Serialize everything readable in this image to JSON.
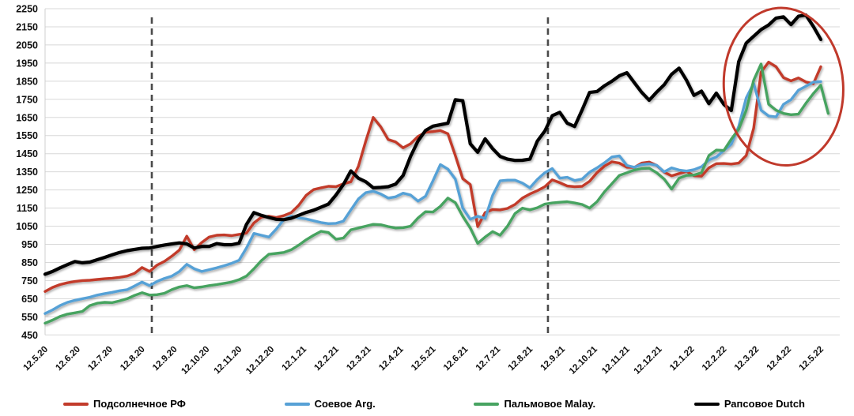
{
  "chart_data": {
    "type": "line",
    "title": "",
    "xlabel": "",
    "ylabel": "",
    "grid": "horizontal",
    "legend_position": "bottom",
    "y_axis": {
      "min": 450,
      "max": 2250,
      "step": 100
    },
    "y_tick_labels": [
      "2250",
      "2150",
      "2050",
      "1950",
      "1850",
      "1750",
      "1650",
      "1550",
      "1450",
      "1350",
      "1250",
      "1150",
      "1050",
      "950",
      "850",
      "750",
      "650",
      "550",
      "450"
    ],
    "x_tick_labels": [
      "12.5.20",
      "12.6.20",
      "12.7.20",
      "12.8.20",
      "12.9.20",
      "12.10.20",
      "12.11.20",
      "12.12.20",
      "12.1.21",
      "12.2.21",
      "12.3.21",
      "12.4.21",
      "12.5.21",
      "12.6.21",
      "12.7.21",
      "12.8.21",
      "12.9.21",
      "12.10.21",
      "12.11.21",
      "12.12.21",
      "12.1.22",
      "12.2.22",
      "12.3.22",
      "12.4.22",
      "12.5.22"
    ],
    "x_unit": "weekly prices, 12.5.2020 - 12.5.2022",
    "points_per_series": 105,
    "series": [
      {
        "key": "sunflower-rf",
        "name": "Подсолнечное РФ",
        "color": "#C23B2B",
        "values": [
          690,
          712,
          728,
          738,
          745,
          750,
          752,
          756,
          760,
          763,
          768,
          775,
          790,
          822,
          800,
          835,
          856,
          885,
          918,
          995,
          920,
          960,
          990,
          1000,
          1002,
          998,
          1005,
          1012,
          1068,
          1100,
          1105,
          1098,
          1108,
          1125,
          1165,
          1220,
          1252,
          1262,
          1270,
          1268,
          1284,
          1295,
          1380,
          1520,
          1650,
          1598,
          1528,
          1515,
          1482,
          1505,
          1545,
          1568,
          1572,
          1578,
          1560,
          1440,
          1312,
          1280,
          1048,
          1125,
          1142,
          1140,
          1148,
          1170,
          1205,
          1228,
          1246,
          1268,
          1306,
          1290,
          1272,
          1268,
          1270,
          1298,
          1345,
          1382,
          1405,
          1398,
          1375,
          1374,
          1398,
          1404,
          1385,
          1348,
          1328,
          1340,
          1352,
          1328,
          1326,
          1372,
          1395,
          1396,
          1393,
          1398,
          1440,
          1590,
          1900,
          1955,
          1930,
          1870,
          1852,
          1868,
          1846,
          1836,
          1930
        ]
      },
      {
        "key": "soy-arg",
        "name": "Соевое Arg.",
        "color": "#57A1D6",
        "values": [
          568,
          588,
          612,
          630,
          641,
          650,
          658,
          670,
          678,
          685,
          694,
          700,
          720,
          742,
          722,
          745,
          762,
          775,
          800,
          840,
          815,
          800,
          810,
          820,
          832,
          845,
          862,
          930,
          1010,
          1000,
          990,
          1034,
          1086,
          1105,
          1096,
          1090,
          1080,
          1070,
          1064,
          1066,
          1078,
          1140,
          1200,
          1235,
          1243,
          1228,
          1205,
          1212,
          1232,
          1222,
          1188,
          1215,
          1300,
          1390,
          1365,
          1310,
          1150,
          1088,
          1105,
          1093,
          1220,
          1300,
          1304,
          1304,
          1288,
          1262,
          1308,
          1345,
          1368,
          1315,
          1320,
          1302,
          1310,
          1348,
          1372,
          1400,
          1432,
          1438,
          1385,
          1375,
          1390,
          1394,
          1386,
          1350,
          1372,
          1360,
          1354,
          1362,
          1378,
          1415,
          1432,
          1468,
          1502,
          1600,
          1758,
          1838,
          1690,
          1658,
          1653,
          1722,
          1748,
          1800,
          1822,
          1845,
          1848
        ]
      },
      {
        "key": "palm-malay",
        "name": "Пальмовое Malay.",
        "color": "#47A361",
        "values": [
          515,
          532,
          552,
          565,
          572,
          580,
          612,
          625,
          630,
          628,
          638,
          650,
          668,
          683,
          670,
          672,
          680,
          700,
          715,
          722,
          710,
          715,
          722,
          728,
          735,
          742,
          755,
          775,
          815,
          860,
          895,
          900,
          905,
          920,
          945,
          975,
          1000,
          1022,
          1015,
          978,
          985,
          1030,
          1040,
          1050,
          1060,
          1058,
          1048,
          1040,
          1042,
          1050,
          1095,
          1130,
          1128,
          1160,
          1205,
          1180,
          1105,
          1040,
          955,
          990,
          1020,
          1000,
          1050,
          1120,
          1150,
          1140,
          1152,
          1172,
          1178,
          1182,
          1185,
          1178,
          1170,
          1150,
          1185,
          1240,
          1285,
          1330,
          1345,
          1360,
          1368,
          1370,
          1345,
          1310,
          1255,
          1315,
          1330,
          1332,
          1345,
          1440,
          1470,
          1468,
          1530,
          1585,
          1690,
          1855,
          1945,
          1723,
          1690,
          1672,
          1665,
          1668,
          1728,
          1782,
          1828,
          1672
        ]
      },
      {
        "key": "rapeseed-dutch",
        "name": "Рапсовое Dutch",
        "color": "#000000",
        "values": [
          785,
          800,
          820,
          838,
          855,
          848,
          852,
          865,
          878,
          892,
          905,
          915,
          922,
          928,
          930,
          938,
          946,
          952,
          958,
          952,
          930,
          938,
          938,
          954,
          948,
          948,
          956,
          1060,
          1125,
          1110,
          1098,
          1088,
          1086,
          1094,
          1110,
          1126,
          1138,
          1155,
          1172,
          1222,
          1280,
          1355,
          1315,
          1295,
          1262,
          1264,
          1268,
          1282,
          1330,
          1435,
          1520,
          1578,
          1602,
          1610,
          1618,
          1748,
          1742,
          1505,
          1458,
          1532,
          1478,
          1435,
          1420,
          1413,
          1414,
          1420,
          1520,
          1575,
          1660,
          1678,
          1618,
          1600,
          1692,
          1788,
          1793,
          1825,
          1850,
          1880,
          1897,
          1842,
          1788,
          1745,
          1790,
          1830,
          1888,
          1922,
          1855,
          1772,
          1795,
          1726,
          1784,
          1722,
          1688,
          1958,
          2060,
          2098,
          2135,
          2160,
          2198,
          2205,
          2162,
          2208,
          2215,
          2152,
          2080
        ]
      }
    ],
    "annotations": {
      "dashed_vlines_week": [
        14.31,
        67.42
      ],
      "dashed_vline_color": "#4a4a4a",
      "ellipse_highlight": {
        "week_center": 99,
        "value_center": 1820,
        "week_radius": 8,
        "value_radius": 435,
        "color": "#C0392B"
      }
    }
  },
  "legend": {
    "items": [
      {
        "label": "Подсолнечное РФ"
      },
      {
        "label": "Соевое Arg."
      },
      {
        "label": "Пальмовое Malay."
      },
      {
        "label": "Рапсовое Dutch"
      }
    ]
  }
}
